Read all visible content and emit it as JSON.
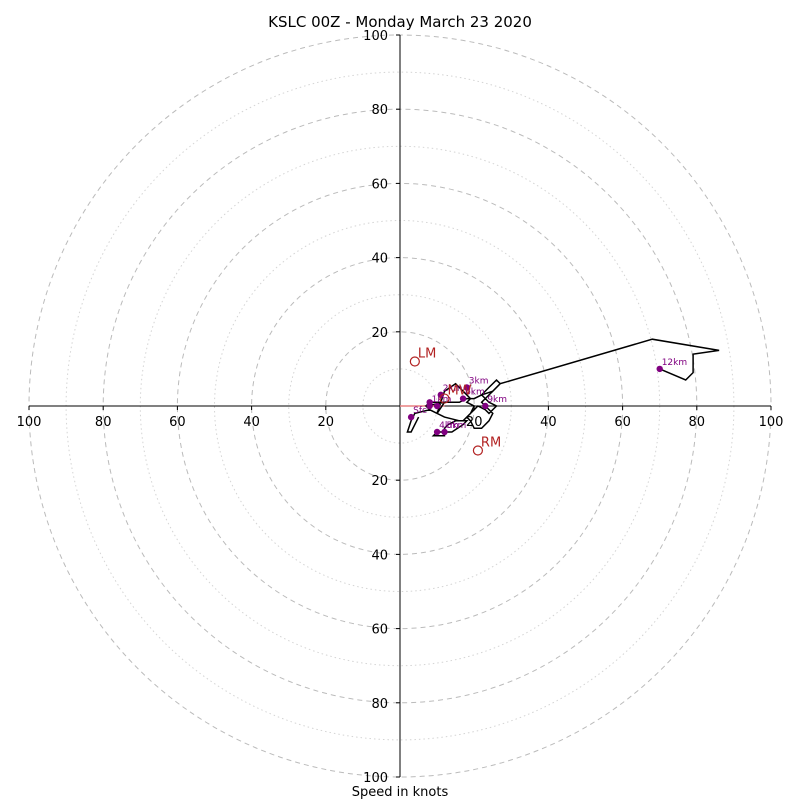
{
  "chart_data": {
    "type": "hodograph",
    "title": "KSLC 00Z - Monday March 23 2020",
    "xlabel": "Speed in knots",
    "range": 100,
    "ring_major_step": 20,
    "ring_minor_step": 10,
    "x_ticks": [
      "100",
      "80",
      "60",
      "40",
      "20",
      "20",
      "40",
      "60",
      "80",
      "100"
    ],
    "y_ticks": [
      "100",
      "80",
      "60",
      "40",
      "20",
      "20",
      "40",
      "60",
      "80",
      "100"
    ],
    "grid": true,
    "colors": {
      "trace": "#000000",
      "height_marker": "#800080",
      "motion_marker": "#b22222",
      "mean_wind_line": "#e88080",
      "grid": "#bbbbbb",
      "axes": "#000000"
    },
    "trace": [
      [
        5,
        -3
      ],
      [
        3,
        -7
      ],
      [
        2,
        -7
      ],
      [
        3,
        -4
      ],
      [
        4,
        -2
      ],
      [
        8,
        -1
      ],
      [
        7,
        0
      ],
      [
        12,
        1
      ],
      [
        10,
        -2
      ],
      [
        8,
        -1
      ],
      [
        7,
        0
      ],
      [
        8,
        1
      ],
      [
        11,
        1
      ],
      [
        10,
        -2
      ],
      [
        12,
        -3
      ],
      [
        16,
        -4
      ],
      [
        18,
        -4
      ],
      [
        17,
        -5
      ],
      [
        14,
        -7
      ],
      [
        10,
        -7
      ],
      [
        9,
        -8
      ],
      [
        12,
        -8
      ],
      [
        12,
        -6
      ],
      [
        13,
        -5
      ],
      [
        15,
        -4
      ],
      [
        17,
        -4
      ],
      [
        19,
        -2
      ],
      [
        20,
        0
      ],
      [
        18,
        1
      ],
      [
        19,
        2
      ],
      [
        17,
        4
      ],
      [
        15,
        6
      ],
      [
        12,
        4
      ],
      [
        11,
        1
      ],
      [
        16,
        1
      ],
      [
        18,
        2
      ],
      [
        20,
        2
      ],
      [
        22,
        3
      ],
      [
        25,
        4
      ],
      [
        26,
        5
      ],
      [
        27,
        6
      ],
      [
        26,
        7
      ],
      [
        24,
        5
      ],
      [
        22,
        3
      ],
      [
        24,
        1
      ],
      [
        26,
        0
      ],
      [
        24,
        -2
      ],
      [
        23,
        -1
      ],
      [
        21,
        0
      ],
      [
        20,
        -1
      ],
      [
        19,
        -2
      ],
      [
        18,
        -3
      ],
      [
        19,
        -4
      ],
      [
        20,
        -6
      ],
      [
        22,
        -6
      ],
      [
        24,
        -4
      ],
      [
        25,
        -2
      ],
      [
        23,
        0
      ],
      [
        22,
        1
      ],
      [
        23,
        2
      ],
      [
        24,
        3
      ],
      [
        25,
        4
      ],
      [
        27,
        6
      ],
      [
        68,
        18
      ],
      [
        86,
        15
      ],
      [
        79,
        14
      ],
      [
        79,
        9
      ],
      [
        77,
        7
      ],
      [
        70,
        10
      ]
    ],
    "height_markers": [
      {
        "label": "Sfc",
        "u": 3,
        "v": -3
      },
      {
        "label": "1km",
        "u": 8,
        "v": 0
      },
      {
        "label": "2km",
        "u": 11,
        "v": 3
      },
      {
        "label": "3km",
        "u": 18,
        "v": 5
      },
      {
        "label": "4km",
        "u": 10,
        "v": -7
      },
      {
        "label": "5km",
        "u": 12,
        "v": -7
      },
      {
        "label": "6km",
        "u": 17,
        "v": 2
      },
      {
        "label": "9km",
        "u": 23,
        "v": 0
      },
      {
        "label": "12km",
        "u": 70,
        "v": 10
      },
      {
        "label": "",
        "u": 8,
        "v": 1
      },
      {
        "label": "",
        "u": 10,
        "v": 0
      }
    ],
    "storm_motion": [
      {
        "label": "LM",
        "u": 4,
        "v": 12
      },
      {
        "label": "RM",
        "u": 21,
        "v": -12
      },
      {
        "label": "MW",
        "u": 12,
        "v": 2
      }
    ],
    "mean_wind_line": [
      [
        0,
        0
      ],
      [
        12,
        0
      ]
    ]
  }
}
